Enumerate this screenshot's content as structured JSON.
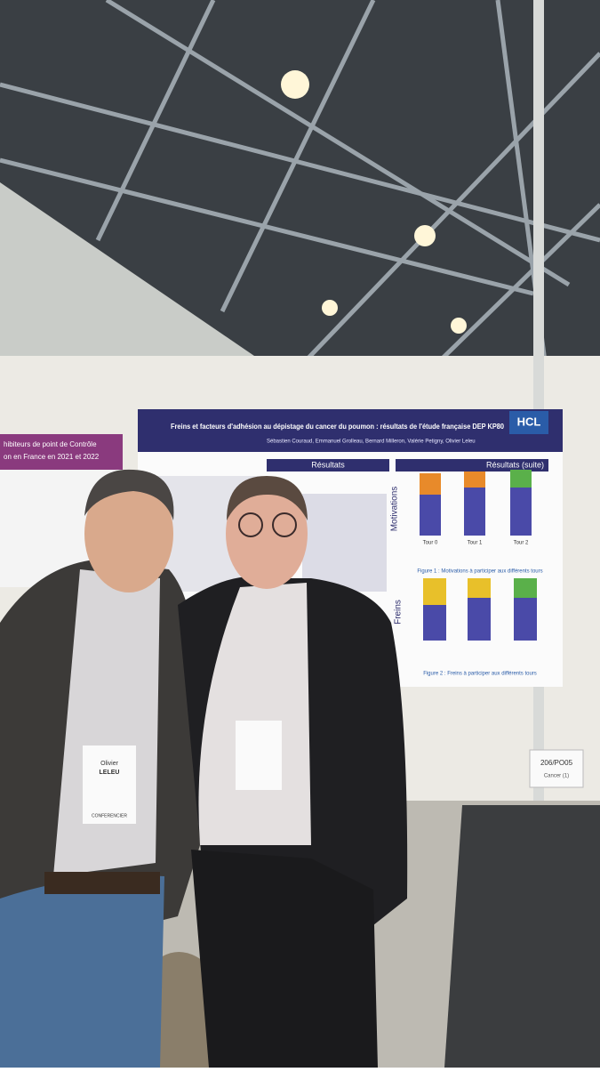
{
  "poster_main": {
    "logo": "HCL",
    "title": "Freins et facteurs d'adhésion au dépistage du cancer du poumon : résultats de l'étude française DEP KP80",
    "authors": "Sébastien Couraud, Emmanuel Grolleau, Bernard Milleron, Valérie Petigny, Olivier Leleu",
    "section_left": "Résultats",
    "section_right": "Résultats (suite)",
    "row_label_1": "Motivations",
    "row_label_2": "Freins",
    "tours": [
      "Tour 0",
      "Tour 1",
      "Tour 2"
    ],
    "figure_1": "Figure 1 : Motivations à participer aux différents tours",
    "figure_2": "Figure 2 : Freins à participer aux différents tours"
  },
  "poster_left": {
    "title_line_1": "hibiteurs de point de Contrôle",
    "title_line_2": "on en France en 2021 et 2022"
  },
  "board_label": {
    "code": "206/PO05",
    "topic": "Cancer (1)"
  },
  "badge_left": {
    "first_name": "Olivier",
    "last_name": "LELEU",
    "role": "CONFERENCIER"
  }
}
